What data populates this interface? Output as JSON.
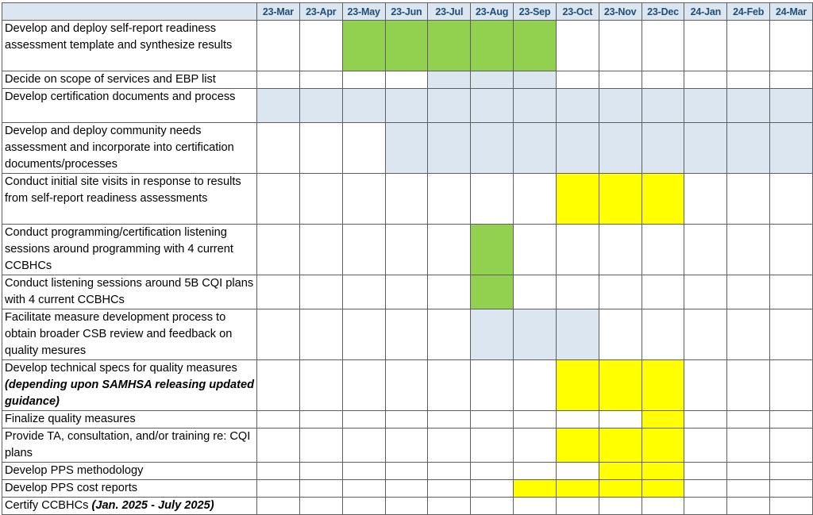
{
  "columns": [
    "23-Mar",
    "23-Apr",
    "23-May",
    "23-Jun",
    "23-Jul",
    "23-Aug",
    "23-Sep",
    "23-Oct",
    "23-Nov",
    "23-Dec",
    "24-Jan",
    "24-Feb",
    "24-Mar"
  ],
  "colors": {
    "green": "#92d050",
    "yellow": "#ffff00",
    "blue": "#dce6f1",
    "white": "#ffffff",
    "header_text": "#1f4e79"
  },
  "rows": [
    {
      "name": "task-self-report-readiness",
      "text": "Develop and deploy self-report readiness assessment template and synthesize results",
      "emphasis": "",
      "cells": [
        "w",
        "w",
        "g",
        "g",
        "g",
        "g",
        "g",
        "w",
        "w",
        "w",
        "w",
        "w",
        "w"
      ]
    },
    {
      "name": "task-scope-of-services",
      "text": "Decide on scope of services and EBP list",
      "emphasis": "",
      "cells": [
        "w",
        "w",
        "w",
        "w",
        "b",
        "b",
        "b",
        "w",
        "w",
        "w",
        "w",
        "w",
        "w"
      ]
    },
    {
      "name": "task-certification-documents",
      "text": "Develop certification documents and process",
      "emphasis": "",
      "cells": [
        "b",
        "b",
        "b",
        "b",
        "b",
        "b",
        "b",
        "b",
        "b",
        "b",
        "b",
        "b",
        "b"
      ]
    },
    {
      "name": "task-community-needs-assessment",
      "text": "Develop and deploy community needs assessment and incorporate into certification documents/processes",
      "emphasis": "",
      "cells": [
        "w",
        "w",
        "w",
        "b",
        "b",
        "b",
        "b",
        "b",
        "b",
        "b",
        "b",
        "b",
        "b"
      ]
    },
    {
      "name": "task-initial-site-visits",
      "text": "Conduct initial site visits in response to results from self-report readiness assessments",
      "emphasis": "",
      "cells": [
        "w",
        "w",
        "w",
        "w",
        "w",
        "w",
        "w",
        "y",
        "y",
        "y",
        "w",
        "w",
        "w"
      ]
    },
    {
      "name": "task-programming-listening-sessions",
      "text": "Conduct programming/certification listening sessions around programming with 4 current CCBHCs",
      "emphasis": "",
      "cells": [
        "w",
        "w",
        "w",
        "w",
        "w",
        "g",
        "w",
        "w",
        "w",
        "w",
        "w",
        "w",
        "w"
      ]
    },
    {
      "name": "task-cqi-listening-sessions",
      "text": "Conduct listening sessions around 5B CQI plans with 4 current CCBHCs",
      "emphasis": "",
      "cells": [
        "w",
        "w",
        "w",
        "w",
        "w",
        "g",
        "w",
        "w",
        "w",
        "w",
        "w",
        "w",
        "w"
      ]
    },
    {
      "name": "task-measure-development",
      "text": "Facilitate measure development process to obtain broader CSB review and feedback on quality mesures",
      "emphasis": "",
      "cells": [
        "w",
        "w",
        "w",
        "w",
        "w",
        "b",
        "b",
        "b",
        "w",
        "w",
        "w",
        "w",
        "w"
      ]
    },
    {
      "name": "task-technical-specs",
      "text": "Develop technical specs for quality measures ",
      "emphasis": "(depending upon SAMHSA releasing updated guidance)",
      "cells": [
        "w",
        "w",
        "w",
        "w",
        "w",
        "w",
        "w",
        "y",
        "y",
        "y",
        "w",
        "w",
        "w"
      ]
    },
    {
      "name": "task-finalize-quality-measures",
      "text": "Finalize quality measures",
      "emphasis": "",
      "cells": [
        "w",
        "w",
        "w",
        "w",
        "w",
        "w",
        "w",
        "w",
        "w",
        "y",
        "w",
        "w",
        "w"
      ]
    },
    {
      "name": "task-ta-consultation-training",
      "text": "Provide TA, consultation, and/or training re: CQI plans",
      "emphasis": "",
      "cells": [
        "w",
        "w",
        "w",
        "w",
        "w",
        "w",
        "w",
        "y",
        "y",
        "y",
        "w",
        "w",
        "w"
      ]
    },
    {
      "name": "task-pps-methodology",
      "text": "Develop PPS methodology",
      "emphasis": "",
      "cells": [
        "w",
        "w",
        "w",
        "w",
        "w",
        "w",
        "w",
        "w",
        "y",
        "y",
        "w",
        "w",
        "w"
      ]
    },
    {
      "name": "task-pps-cost-reports",
      "text": "Develop PPS cost reports",
      "emphasis": "",
      "cells": [
        "w",
        "w",
        "w",
        "w",
        "w",
        "w",
        "y",
        "y",
        "y",
        "y",
        "w",
        "w",
        "w"
      ]
    },
    {
      "name": "task-certify-ccbhcs",
      "text": "Certify CCBHCs ",
      "emphasis": "(Jan. 2025 - July 2025)",
      "cells": [
        "w",
        "w",
        "w",
        "w",
        "w",
        "w",
        "w",
        "w",
        "w",
        "w",
        "w",
        "w",
        "w"
      ]
    }
  ]
}
